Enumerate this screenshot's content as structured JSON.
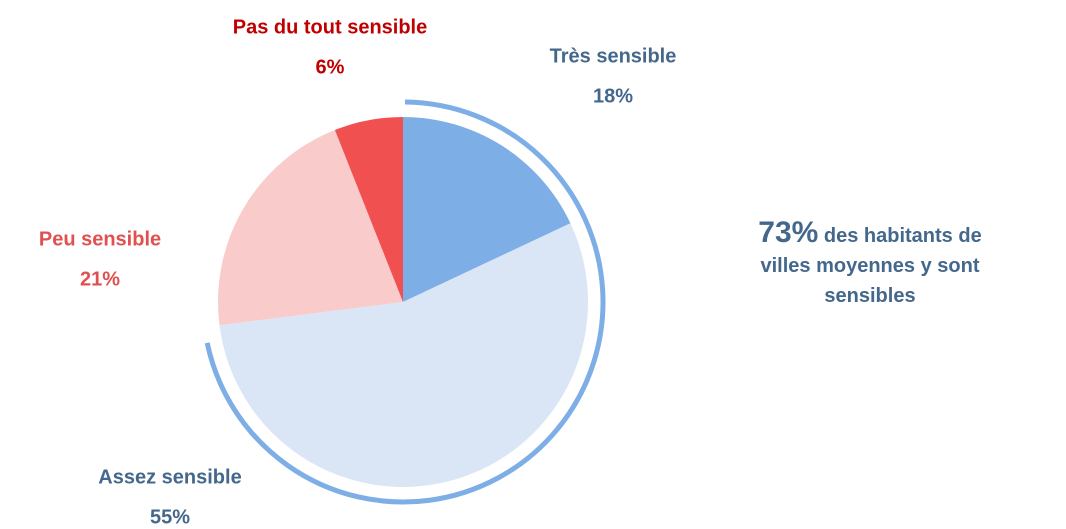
{
  "chart_data": {
    "type": "pie",
    "categories": [
      "Très sensible",
      "Assez sensible",
      "Peu sensible",
      "Pas du tout sensible"
    ],
    "values": [
      18,
      55,
      21,
      6
    ],
    "value_labels": [
      "18%",
      "55%",
      "21%",
      "6%"
    ],
    "colors": [
      "#7eaee6",
      "#dae6f6",
      "#f9cbcb",
      "#f05050"
    ],
    "label_colors": [
      "#44678c",
      "#44678c",
      "#e05050",
      "#c00000"
    ],
    "highlight_color": "#7eaee6",
    "annotation": {
      "value": "73%",
      "text": "des habitants de villes moyennes y sont sensibles",
      "color": "#44678c"
    }
  }
}
